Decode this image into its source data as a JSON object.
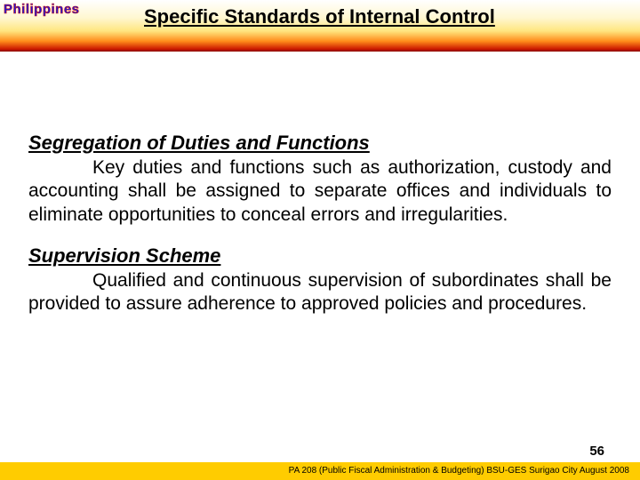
{
  "banner": {
    "country_label": "Philippines",
    "title": "Specific Standards of Internal Control"
  },
  "sections": [
    {
      "heading": "Segregation of Duties and Functions",
      "body": "Key duties and functions such as authorization, custody and accounting shall be assigned to separate offices and individuals to eliminate opportunities to conceal errors and irregularities."
    },
    {
      "heading": "Supervision Scheme",
      "body": "Qualified and continuous supervision of subordinates shall be provided to assure adherence to approved policies and procedures."
    }
  ],
  "page_number": "56",
  "footer": "PA 208 (Public Fiscal Administration & Budgeting) BSU-GES Surigao City August 2008",
  "colors": {
    "footer_bg": "#ffcc00",
    "text": "#000000",
    "phil_fill": "#1a1ad6",
    "phil_stroke": "#d01010"
  },
  "fontsizes": {
    "title": 22,
    "section_head": 22,
    "body": 21,
    "page_num": 15,
    "footer": 10,
    "philippines": 15
  }
}
